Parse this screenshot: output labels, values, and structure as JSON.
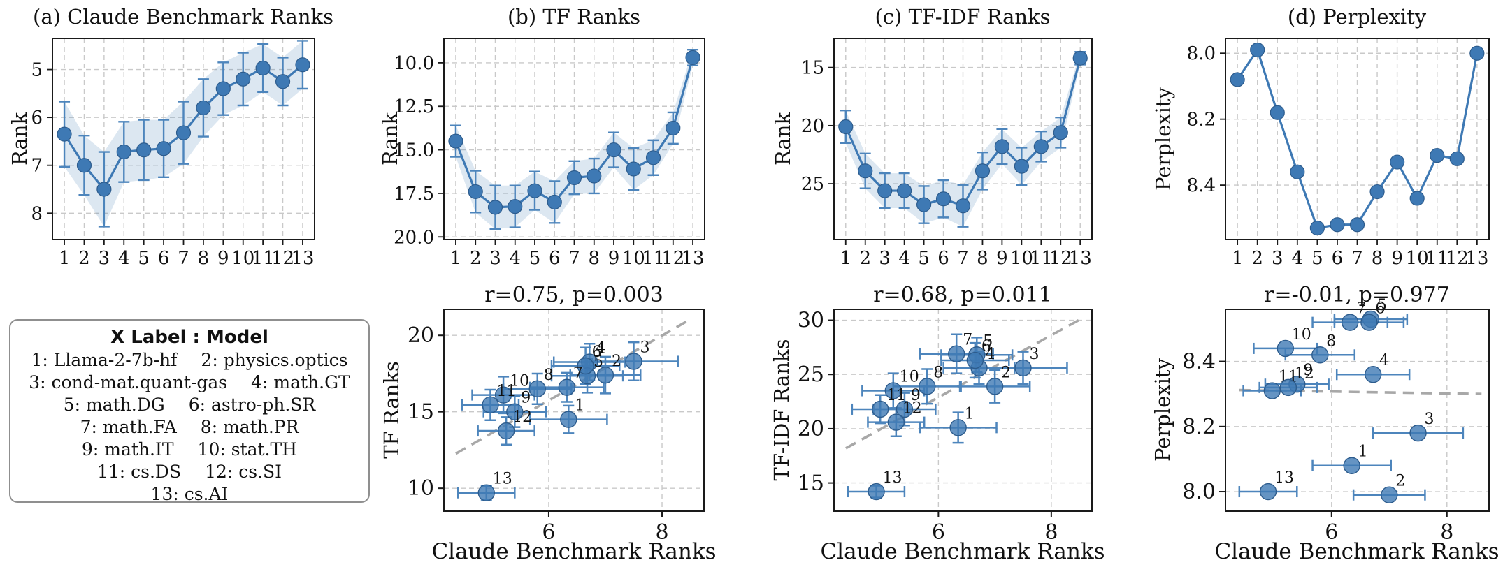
{
  "colors": {
    "accent": "#3e79b4",
    "marker_edge": "#2d5c8d",
    "error_bar": "#4d85bc",
    "band": "#3e79b4",
    "band_alpha": 0.18,
    "grid": "#c9c9c9",
    "trend": "#a8a8a8",
    "spine": "#1a1a1a",
    "text": "#111111"
  },
  "legend": {
    "title": "X Label :  Model",
    "entries": [
      {
        "n": "1",
        "label": "Llama-2-7b-hf"
      },
      {
        "n": "2",
        "label": "physics.optics"
      },
      {
        "n": "3",
        "label": "cond-mat.quant-gas"
      },
      {
        "n": "4",
        "label": "math.GT"
      },
      {
        "n": "5",
        "label": "math.DG"
      },
      {
        "n": "6",
        "label": "astro-ph.SR"
      },
      {
        "n": "7",
        "label": "math.FA"
      },
      {
        "n": "8",
        "label": "math.PR"
      },
      {
        "n": "9",
        "label": "math.IT"
      },
      {
        "n": "10",
        "label": "stat.TH"
      },
      {
        "n": "11",
        "label": "cs.DS"
      },
      {
        "n": "12",
        "label": "cs.SI"
      },
      {
        "n": "13",
        "label": "cs.AI"
      }
    ],
    "rows": [
      [
        0,
        1
      ],
      [
        2,
        3
      ],
      [
        4,
        5
      ],
      [
        6,
        7
      ],
      [
        8,
        9
      ],
      [
        10,
        11
      ],
      [
        12
      ]
    ]
  },
  "chart_data": [
    {
      "id": "a",
      "type": "line",
      "title": "(a) Claude Benchmark Ranks",
      "ylabel": "Rank",
      "x": [
        1,
        2,
        3,
        4,
        5,
        6,
        7,
        8,
        9,
        10,
        11,
        12,
        13
      ],
      "xtick_labels": [
        "1",
        "2",
        "3",
        "4",
        "5",
        "6",
        "7",
        "8",
        "9",
        "10",
        "11",
        "12",
        "13"
      ],
      "values": [
        6.35,
        7.0,
        7.5,
        6.72,
        6.68,
        6.65,
        6.32,
        5.8,
        5.4,
        5.2,
        4.97,
        5.25,
        4.9
      ],
      "errors": [
        0.68,
        0.62,
        0.78,
        0.63,
        0.63,
        0.6,
        0.65,
        0.6,
        0.55,
        0.55,
        0.5,
        0.5,
        0.5
      ],
      "yticks": [
        5,
        6,
        7,
        8
      ],
      "ytick_labels": [
        "5",
        "6",
        "7",
        "8"
      ],
      "ylim": [
        8.55,
        4.35
      ],
      "xlim": [
        0.4,
        13.6
      ],
      "y_inverted": true,
      "grid": true
    },
    {
      "id": "b",
      "type": "line",
      "title": "(b) TF Ranks",
      "ylabel": "Rank",
      "x": [
        1,
        2,
        3,
        4,
        5,
        6,
        7,
        8,
        9,
        10,
        11,
        12,
        13
      ],
      "xtick_labels": [
        "1",
        "2",
        "3",
        "4",
        "5",
        "6",
        "7",
        "8",
        "9",
        "10",
        "11",
        "12",
        "13"
      ],
      "values": [
        14.5,
        17.4,
        18.3,
        18.25,
        17.35,
        18.0,
        16.6,
        16.5,
        15.0,
        16.1,
        15.45,
        13.75,
        9.7
      ],
      "errors": [
        0.9,
        1.2,
        1.25,
        1.2,
        1.1,
        1.2,
        0.95,
        1.0,
        1.0,
        1.2,
        1.0,
        0.9,
        0.45
      ],
      "yticks": [
        10,
        12.5,
        15,
        17.5,
        20
      ],
      "ytick_labels": [
        "10.0",
        "12.5",
        "15.0",
        "17.5",
        "20.0"
      ],
      "ylim": [
        20.15,
        8.6
      ],
      "xlim": [
        0.4,
        13.6
      ],
      "y_inverted": true,
      "grid": true
    },
    {
      "id": "c",
      "type": "line",
      "title": "(c) TF-IDF Ranks",
      "ylabel": "Rank",
      "x": [
        1,
        2,
        3,
        4,
        5,
        6,
        7,
        8,
        9,
        10,
        11,
        12,
        13
      ],
      "xtick_labels": [
        "1",
        "2",
        "3",
        "4",
        "5",
        "6",
        "7",
        "8",
        "9",
        "10",
        "11",
        "12",
        "13"
      ],
      "values": [
        20.1,
        23.9,
        25.6,
        25.6,
        26.8,
        26.3,
        26.9,
        23.9,
        21.8,
        23.5,
        21.8,
        20.6,
        14.2
      ],
      "errors": [
        1.4,
        1.5,
        1.5,
        1.5,
        1.6,
        1.6,
        1.8,
        1.6,
        1.5,
        1.6,
        1.3,
        1.3,
        0.55
      ],
      "yticks": [
        15,
        20,
        25
      ],
      "ytick_labels": [
        "15",
        "20",
        "25"
      ],
      "ylim": [
        29.8,
        12.5
      ],
      "xlim": [
        0.4,
        13.6
      ],
      "y_inverted": true,
      "grid": true
    },
    {
      "id": "d",
      "type": "line",
      "title": "(d) Perplexity",
      "ylabel": "Perplexity",
      "x": [
        1,
        2,
        3,
        4,
        5,
        6,
        7,
        8,
        9,
        10,
        11,
        12,
        13
      ],
      "xtick_labels": [
        "1",
        "2",
        "3",
        "4",
        "5",
        "6",
        "7",
        "8",
        "9",
        "10",
        "11",
        "12",
        "13"
      ],
      "values": [
        8.08,
        7.99,
        8.18,
        8.36,
        8.53,
        8.52,
        8.52,
        8.42,
        8.33,
        8.44,
        8.31,
        8.32,
        8.0
      ],
      "errors": null,
      "yticks": [
        8.0,
        8.2,
        8.4
      ],
      "ytick_labels": [
        "8.0",
        "8.2",
        "8.4"
      ],
      "ylim": [
        8.565,
        7.955
      ],
      "xlim": [
        0.4,
        13.6
      ],
      "y_inverted": true,
      "grid": true
    },
    {
      "id": "s1",
      "type": "scatter",
      "title": "r=0.75, p=0.003",
      "xlabel": "Claude Benchmark Ranks",
      "ylabel": "TF Ranks",
      "labels": [
        "1",
        "2",
        "3",
        "4",
        "5",
        "6",
        "7",
        "8",
        "9",
        "10",
        "11",
        "12",
        "13"
      ],
      "x": [
        6.35,
        7.0,
        7.5,
        6.72,
        6.68,
        6.65,
        6.32,
        5.8,
        5.4,
        5.2,
        4.97,
        5.25,
        4.9
      ],
      "y": [
        14.5,
        17.4,
        18.3,
        18.25,
        17.35,
        18.0,
        16.6,
        16.5,
        15.0,
        16.1,
        15.45,
        13.75,
        9.7
      ],
      "xerr": [
        0.68,
        0.62,
        0.78,
        0.63,
        0.63,
        0.6,
        0.65,
        0.6,
        0.55,
        0.55,
        0.5,
        0.5,
        0.5
      ],
      "yerr": [
        0.9,
        1.2,
        1.25,
        1.2,
        1.1,
        1.2,
        0.95,
        1.0,
        1.0,
        1.2,
        1.0,
        0.9,
        0.45
      ],
      "xticks": [
        6,
        8
      ],
      "xtick_labels": [
        "6",
        "8"
      ],
      "yticks": [
        10,
        15,
        20
      ],
      "ytick_labels": [
        "10",
        "15",
        "20"
      ],
      "xlim": [
        4.15,
        8.74
      ],
      "ylim": [
        8.5,
        21.7
      ],
      "trend": {
        "x": [
          4.36,
          8.5
        ],
        "y": [
          12.26,
          21.05
        ]
      },
      "grid": true
    },
    {
      "id": "s2",
      "type": "scatter",
      "title": "r=0.68, p=0.011",
      "xlabel": "Claude Benchmark Ranks",
      "ylabel": "TF-IDF Ranks",
      "labels": [
        "1",
        "2",
        "3",
        "4",
        "5",
        "6",
        "7",
        "8",
        "9",
        "10",
        "11",
        "12",
        "13"
      ],
      "x": [
        6.35,
        7.0,
        7.5,
        6.72,
        6.68,
        6.65,
        6.32,
        5.8,
        5.4,
        5.2,
        4.97,
        5.25,
        4.9
      ],
      "y": [
        20.1,
        23.9,
        25.6,
        25.6,
        26.8,
        26.3,
        26.9,
        23.9,
        21.8,
        23.5,
        21.8,
        20.6,
        14.2
      ],
      "xerr": [
        0.68,
        0.62,
        0.78,
        0.63,
        0.63,
        0.6,
        0.65,
        0.6,
        0.55,
        0.55,
        0.5,
        0.5,
        0.5
      ],
      "yerr": [
        1.4,
        1.5,
        1.5,
        1.5,
        1.6,
        1.6,
        1.8,
        1.6,
        1.5,
        1.6,
        1.3,
        1.3,
        0.55
      ],
      "xticks": [
        6,
        8
      ],
      "xtick_labels": [
        "6",
        "8"
      ],
      "yticks": [
        15,
        20,
        25,
        30
      ],
      "ytick_labels": [
        "15",
        "20",
        "25",
        "30"
      ],
      "xlim": [
        4.15,
        8.72
      ],
      "ylim": [
        12.4,
        31.0
      ],
      "trend": {
        "x": [
          4.36,
          8.52
        ],
        "y": [
          18.2,
          30.1
        ]
      },
      "grid": true
    },
    {
      "id": "s3",
      "type": "scatter",
      "title": "r=-0.01, p=0.977",
      "xlabel": "Claude Benchmark Ranks",
      "ylabel": "Perplexity",
      "labels": [
        "1",
        "2",
        "3",
        "4",
        "5",
        "6",
        "7",
        "8",
        "9",
        "10",
        "11",
        "12",
        "13"
      ],
      "x": [
        6.35,
        7.0,
        7.5,
        6.72,
        6.68,
        6.65,
        6.32,
        5.8,
        5.4,
        5.2,
        4.97,
        5.25,
        4.9
      ],
      "y": [
        8.08,
        7.99,
        8.18,
        8.36,
        8.53,
        8.52,
        8.52,
        8.42,
        8.33,
        8.44,
        8.31,
        8.32,
        8.0
      ],
      "xerr": [
        0.68,
        0.62,
        0.78,
        0.63,
        0.63,
        0.6,
        0.65,
        0.6,
        0.55,
        0.55,
        0.5,
        0.5,
        0.5
      ],
      "yerr": null,
      "xticks": [
        6,
        8
      ],
      "xtick_labels": [
        "6",
        "8"
      ],
      "yticks": [
        8.0,
        8.2,
        8.4
      ],
      "ytick_labels": [
        "8.0",
        "8.2",
        "8.4"
      ],
      "xlim": [
        4.16,
        8.73
      ],
      "ylim": [
        7.94,
        8.56
      ],
      "trend": {
        "x": [
          4.4,
          8.6
        ],
        "y": [
          8.312,
          8.3
        ]
      },
      "grid": true
    }
  ]
}
